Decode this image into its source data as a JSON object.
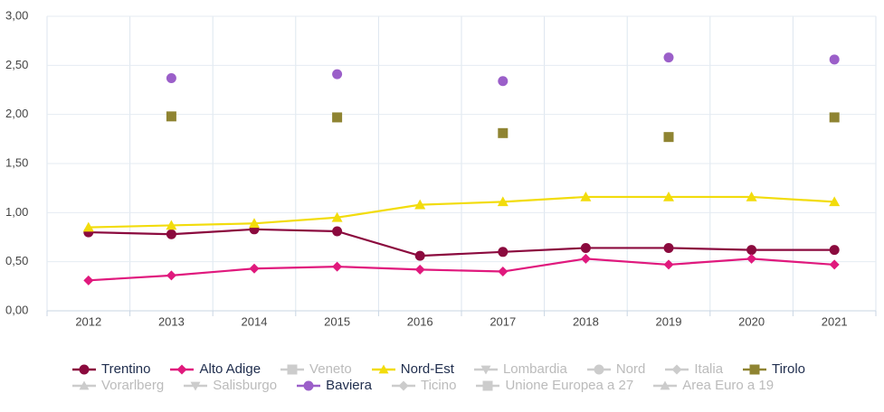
{
  "chart_data": {
    "type": "line",
    "categories": [
      "2012",
      "2013",
      "2014",
      "2015",
      "2016",
      "2017",
      "2018",
      "2019",
      "2020",
      "2021"
    ],
    "ylim": [
      0,
      3
    ],
    "yticks": [
      {
        "value": 0,
        "label": "0,00"
      },
      {
        "value": 0.5,
        "label": "0,50"
      },
      {
        "value": 1,
        "label": "1,00"
      },
      {
        "value": 1.5,
        "label": "1,50"
      },
      {
        "value": 2,
        "label": "2,00"
      },
      {
        "value": 2.5,
        "label": "2,50"
      },
      {
        "value": 3,
        "label": "3,00"
      }
    ],
    "grid": true,
    "legend": "bottom",
    "series": [
      {
        "name": "Trentino",
        "color": "#8b0a3e",
        "marker": "circle",
        "line": true,
        "values": [
          0.8,
          0.78,
          0.83,
          0.81,
          0.56,
          0.6,
          0.64,
          0.64,
          0.62,
          0.62
        ]
      },
      {
        "name": "Alto Adige",
        "color": "#e0197d",
        "marker": "diamond",
        "line": true,
        "values": [
          0.31,
          0.36,
          0.43,
          0.45,
          0.42,
          0.4,
          0.53,
          0.47,
          0.53,
          0.47
        ]
      },
      {
        "name": "Veneto",
        "color": "#cccccc",
        "marker": "square",
        "hidden": true
      },
      {
        "name": "Nord-Est",
        "color": "#f2dc0c",
        "marker": "triangle",
        "line": true,
        "values": [
          0.85,
          0.87,
          0.89,
          0.95,
          1.08,
          1.11,
          1.16,
          1.16,
          1.16,
          1.11
        ]
      },
      {
        "name": "Lombardia",
        "color": "#cccccc",
        "marker": "triangle-down",
        "hidden": true
      },
      {
        "name": "Nord",
        "color": "#cccccc",
        "marker": "circle",
        "hidden": true
      },
      {
        "name": "Italia",
        "color": "#cccccc",
        "marker": "diamond",
        "hidden": true
      },
      {
        "name": "Tirolo",
        "color": "#8f8432",
        "marker": "square",
        "line": false,
        "values": [
          null,
          1.98,
          null,
          1.97,
          null,
          1.81,
          null,
          1.77,
          null,
          1.97
        ]
      },
      {
        "name": "Vorarlberg",
        "color": "#cccccc",
        "marker": "triangle",
        "hidden": true
      },
      {
        "name": "Salisburgo",
        "color": "#cccccc",
        "marker": "triangle-down",
        "hidden": true
      },
      {
        "name": "Baviera",
        "color": "#9b5fc9",
        "marker": "circle",
        "line": false,
        "values": [
          null,
          2.37,
          null,
          2.41,
          null,
          2.34,
          null,
          2.58,
          null,
          2.56
        ]
      },
      {
        "name": "Ticino",
        "color": "#cccccc",
        "marker": "diamond",
        "hidden": true
      },
      {
        "name": "Unione Europea a 27",
        "color": "#cccccc",
        "marker": "square",
        "hidden": true
      },
      {
        "name": "Area Euro a 19",
        "color": "#cccccc",
        "marker": "triangle",
        "hidden": true
      }
    ]
  }
}
